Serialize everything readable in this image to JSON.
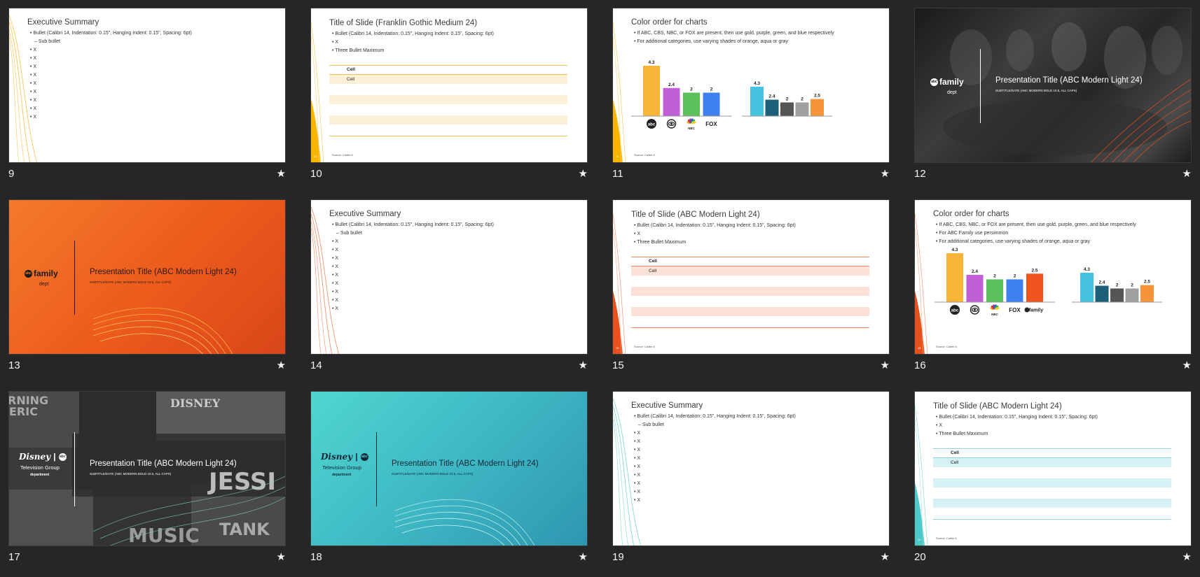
{
  "slides": [
    {
      "number": "9",
      "title": "Executive Summary",
      "bullets": [
        "Bullet (Calibri 14, Indentation: 0.15\", Hanging Indent: 0.15\", Spacing: 6pt)"
      ],
      "sub_bullet": "Sub bullet",
      "x_items": [
        "X",
        "X",
        "X",
        "X",
        "X",
        "X",
        "X",
        "X",
        "X"
      ],
      "accent": "#f7b500"
    },
    {
      "number": "10",
      "title": "Title of Slide (Franklin Gothic Medium 24)",
      "bullets": [
        "Bullet (Calibri 14, Indentation: 0.15\", Hanging Indent: 0.15\", Spacing: 6pt)",
        "X",
        "Three Bullet Maximum"
      ],
      "table_header": "Cell",
      "table_row": "Cell",
      "source": "Source: Calibri 8",
      "page": "10",
      "accent": "#f7b500",
      "band": "#fdf0d8"
    },
    {
      "number": "11",
      "title": "Color order for charts",
      "bullets": [
        "If  ABC, CBS, NBC, or FOX are present, then use gold, purple, green, and blue respectively",
        "For additional categories, use varying shades of orange, aqua or gray"
      ],
      "source": "Source: Calibri 8",
      "page": "11",
      "accent": "#f7b500",
      "logos": {
        "abc": "abc",
        "nbc": "NBC",
        "fox": "FOX"
      }
    },
    {
      "number": "12",
      "logo": "family",
      "logo_sub": "dept",
      "ptitle": "Presentation Title (ABC Modern Light 24)",
      "psub": "SUBTITLE/DATE (ABC MODERN BOLD 10.5, ALL CAPS)"
    },
    {
      "number": "13",
      "logo": "family",
      "logo_sub": "dept",
      "ptitle": "Presentation Title (ABC Modern Light 24)",
      "psub": "SUBTITLE/DATE (ABC MODERN BOLD 10.5, ALL CAPS)"
    },
    {
      "number": "14",
      "title": "Executive Summary",
      "bullets": [
        "Bullet (Calibri 14, Indentation: 0.15\", Hanging Indent: 0.15\", Spacing: 6pt)"
      ],
      "sub_bullet": "Sub bullet",
      "x_items": [
        "X",
        "X",
        "X",
        "X",
        "X",
        "X",
        "X",
        "X",
        "X"
      ]
    },
    {
      "number": "15",
      "title": "Title of Slide (ABC Modern Light 24)",
      "bullets": [
        "Bullet (Calibri 14, Indentation: 0.15\", Hanging Indent: 0.15\", Spacing: 6pt)",
        "X",
        "Three Bullet Maximum"
      ],
      "table_header": "Cell",
      "table_row": "Cell",
      "source": "Source: Calibri 8",
      "page": "15",
      "accent": "#e8501e",
      "band": "#fde0d6"
    },
    {
      "number": "16",
      "title": "Color order for charts",
      "bullets": [
        "If  ABC, CBS, NBC, or FOX are present, then use gold, purple, green, and blue respectively",
        "For ABC Family use persimmon",
        "For additional categories, use varying shades of orange, aqua or gray"
      ],
      "source": "Source: Calibri 8",
      "page": "16",
      "logos": {
        "abc": "abc",
        "nbc": "NBC",
        "fox": "FOX",
        "family": "family"
      }
    },
    {
      "number": "17",
      "logo_disney": "Disney",
      "logo_abc": "abc",
      "logo_group": "Television Group",
      "logo_dept": "department",
      "ptitle": "Presentation Title (ABC Modern Light 24)",
      "psub": "SUBTITLE/DATE (ABC MODERN BOLD 10.5, ALL CAPS)",
      "bg_words": [
        "RNING",
        "ERIC",
        "DISNEY",
        "JESSI",
        "MUSIC",
        "TANK"
      ]
    },
    {
      "number": "18",
      "logo_disney": "Disney",
      "logo_abc": "abc",
      "logo_group": "Television Group",
      "logo_dept": "department",
      "ptitle": "Presentation Title (ABC Modern Light 24)",
      "psub": "SUBTITLE/DATE (ABC MODERN BOLD 10.5, ALL CAPS)"
    },
    {
      "number": "19",
      "title": "Executive Summary",
      "bullets": [
        "Bullet (Calibri 14, Indentation: 0.15\", Hanging Indent: 0.15\", Spacing: 6pt)"
      ],
      "sub_bullet": "Sub bullet",
      "x_items": [
        "X",
        "X",
        "X",
        "X",
        "X",
        "X",
        "X",
        "X",
        "X"
      ]
    },
    {
      "number": "20",
      "title": "Title of Slide (ABC Modern Light 24)",
      "bullets": [
        "Bullet (Calibri 14, Indentation: 0.15\", Hanging Indent: 0.15\", Spacing: 6pt)",
        "X",
        "Three Bullet Maximum"
      ],
      "table_header": "Cell",
      "table_row": "Cell",
      "source": "Source: Calibri 8",
      "page": "20",
      "accent": "#4cc9c8",
      "band": "#d6f2f6"
    }
  ],
  "star_icon": "★",
  "chart_data": [
    {
      "type": "bar",
      "slide": "11",
      "categories": [
        "abc",
        "CBS",
        "NBC",
        "FOX"
      ],
      "values": [
        4.3,
        2.4,
        2,
        2
      ],
      "colors": [
        "#f7b538",
        "#c05fd6",
        "#5cc05a",
        "#3f80f0"
      ],
      "ylim": [
        0,
        4.3
      ]
    },
    {
      "type": "bar",
      "slide": "11",
      "values": [
        4.3,
        2.4,
        2,
        2,
        2.5
      ],
      "colors": [
        "#45c2e0",
        "#1b5f78",
        "#555555",
        "#a0a0a0",
        "#f5943a"
      ],
      "ylim": [
        0,
        4.3
      ]
    },
    {
      "type": "bar",
      "slide": "16",
      "categories": [
        "abc",
        "CBS",
        "NBC",
        "FOX",
        "family"
      ],
      "values": [
        4.3,
        2.4,
        2,
        2,
        2.5
      ],
      "colors": [
        "#f7b538",
        "#c05fd6",
        "#5cc05a",
        "#3f80f0",
        "#f0541e"
      ],
      "ylim": [
        0,
        4.3
      ]
    },
    {
      "type": "bar",
      "slide": "16",
      "values": [
        4.3,
        2.4,
        2,
        2,
        2.5
      ],
      "colors": [
        "#45c2e0",
        "#1b5f78",
        "#555555",
        "#a0a0a0",
        "#f5943a"
      ],
      "ylim": [
        0,
        4.3
      ]
    }
  ]
}
